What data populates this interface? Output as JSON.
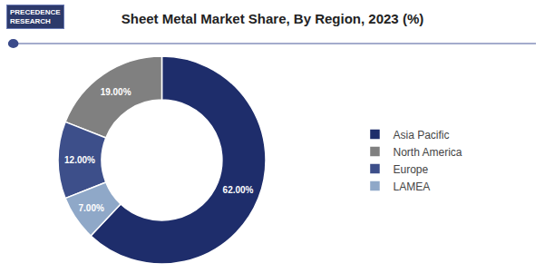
{
  "chart_data": {
    "type": "pie",
    "title": "Sheet Metal Market Share, By Region, 2023 (%)",
    "categories": [
      "Asia Pacific",
      "North America",
      "Europe",
      "LAMEA"
    ],
    "values": [
      62.0,
      19.0,
      12.0,
      7.0
    ],
    "value_labels": [
      "62.00%",
      "19.00%",
      "12.00%",
      "7.00%"
    ],
    "colors": [
      "#1e2d6b",
      "#808080",
      "#3d4f8a",
      "#8fa8c8"
    ],
    "data_labels": true,
    "legend": "right",
    "annotations": [
      "PRECEDENCE\nRESEARCH"
    ]
  }
}
